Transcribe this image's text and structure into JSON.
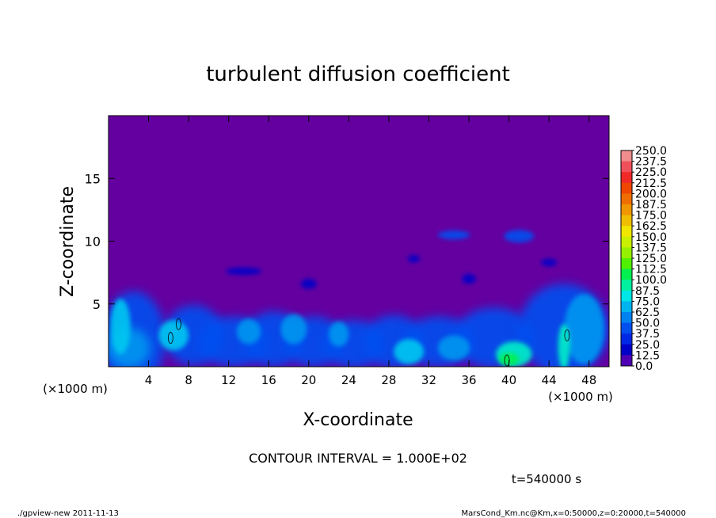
{
  "chart_data": {
    "type": "heatmap",
    "title": "turbulent diffusion coefficient",
    "xlabel": "X-coordinate",
    "ylabel": "Z-coordinate",
    "x_unit_label": "(×1000 m)",
    "y_unit_label": "(×1000 m)",
    "xlim": [
      0,
      50
    ],
    "ylim": [
      0,
      20
    ],
    "x_ticks": [
      4,
      8,
      12,
      16,
      20,
      24,
      28,
      32,
      36,
      40,
      44,
      48
    ],
    "y_ticks": [
      5,
      10,
      15
    ],
    "colorbar": {
      "levels": [
        "250.0",
        "237.5",
        "225.0",
        "212.5",
        "200.0",
        "187.5",
        "175.0",
        "162.5",
        "150.0",
        "137.5",
        "125.0",
        "112.5",
        "100.0",
        "87.5",
        "75.0",
        "62.5",
        "50.0",
        "37.5",
        "25.0",
        "12.5",
        "0.0"
      ],
      "colors": [
        "#f08c8c",
        "#f0505a",
        "#f02828",
        "#f04600",
        "#f06e00",
        "#f09600",
        "#f0be00",
        "#f0e600",
        "#c8f000",
        "#96f000",
        "#50f000",
        "#00f050",
        "#00f0a0",
        "#00e6e6",
        "#00b4f0",
        "#0082f0",
        "#0050f0",
        "#0028e6",
        "#0000c8",
        "#5000b4"
      ],
      "background": "#6400a0"
    },
    "contour_interval_text": "CONTOUR INTERVAL = 1.000E+02",
    "time_text": "t=540000 s"
  },
  "footer": {
    "left": "./gpview-new  2011-11-13",
    "right": "MarsCond_Km.nc@Km,x=0:50000,z=0:20000,t=540000"
  }
}
